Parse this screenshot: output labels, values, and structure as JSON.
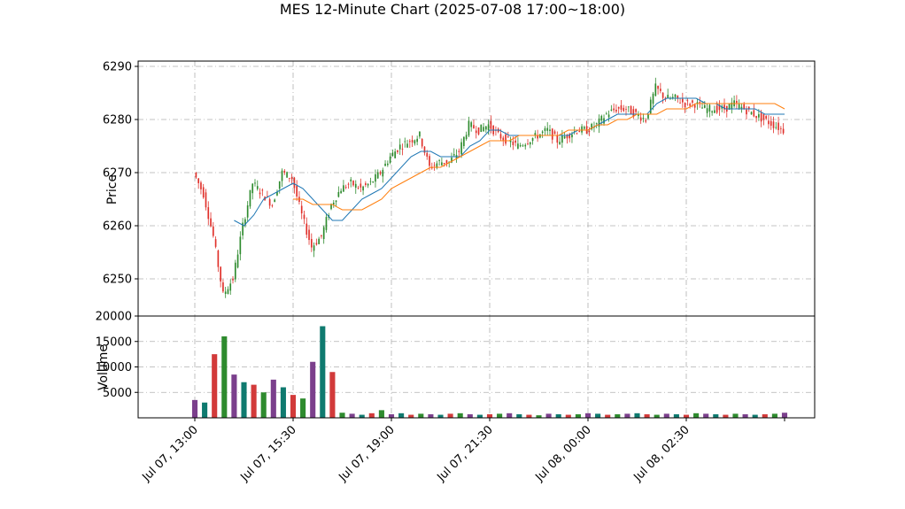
{
  "chart_data": {
    "type": "candlestick",
    "title": "MES 12-Minute Chart (2025-07-08 17:00~18:00)",
    "x_tick_labels": [
      "Jul 07, 13:00",
      "Jul 07, 15:30",
      "Jul 07, 19:00",
      "Jul 07, 21:30",
      "Jul 08, 00:00",
      "Jul 08, 02:30"
    ],
    "x_range_bars": [
      0,
      60
    ],
    "x_tick_bars": [
      0,
      10,
      20,
      30,
      40,
      50
    ],
    "price_panel": {
      "ylabel": "Price",
      "ylim": [
        6243,
        6291
      ],
      "yticks": [
        6250,
        6260,
        6270,
        6280,
        6290
      ],
      "grid": true,
      "up_color": "#2e8b2e",
      "down_color": "#e0302a",
      "ma_short_color": "#1f77b4",
      "ma_long_color": "#ff7f0e",
      "close_series": [
        6270,
        6266,
        6258,
        6247,
        6250,
        6260,
        6268,
        6266,
        6264,
        6270,
        6269,
        6262,
        6256,
        6258,
        6264,
        6267,
        6268,
        6267,
        6268,
        6270,
        6273,
        6275,
        6276,
        6277,
        6271,
        6272,
        6272,
        6274,
        6279,
        6278,
        6279,
        6277,
        6276,
        6275,
        6276,
        6277,
        6278,
        6276,
        6277,
        6278,
        6278,
        6279,
        6281,
        6282,
        6282,
        6281,
        6280,
        6286,
        6284,
        6284,
        6283,
        6283,
        6282,
        6282,
        6282,
        6283,
        6282,
        6281,
        6280,
        6279,
        6278
      ],
      "ma_short": [
        null,
        null,
        null,
        null,
        6261,
        6260,
        6262,
        6265,
        6266,
        6267,
        6268,
        6267,
        6265,
        6263,
        6261,
        6261,
        6263,
        6265,
        6266,
        6267,
        6269,
        6271,
        6273,
        6274,
        6274,
        6273,
        6273,
        6273,
        6275,
        6276,
        6278,
        6278,
        6277,
        6277,
        6277,
        6277,
        6277,
        6277,
        6277,
        6278,
        6278,
        6279,
        6280,
        6281,
        6281,
        6281,
        6281,
        6283,
        6284,
        6284,
        6284,
        6284,
        6283,
        6283,
        6282,
        6282,
        6282,
        6282,
        6281,
        6281,
        6281
      ],
      "ma_long": [
        null,
        null,
        null,
        null,
        null,
        null,
        null,
        null,
        null,
        null,
        6265,
        6265,
        6264,
        6264,
        6264,
        6263,
        6263,
        6263,
        6264,
        6265,
        6267,
        6268,
        6269,
        6270,
        6271,
        6271,
        6272,
        6273,
        6274,
        6275,
        6276,
        6276,
        6276,
        6277,
        6277,
        6277,
        6277,
        6277,
        6278,
        6278,
        6278,
        6279,
        6279,
        6280,
        6280,
        6281,
        6281,
        6281,
        6282,
        6282,
        6282,
        6283,
        6283,
        6283,
        6283,
        6283,
        6283,
        6283,
        6283,
        6283,
        6282
      ]
    },
    "volume_panel": {
      "ylabel": "Volume",
      "ylim": [
        0,
        20000
      ],
      "yticks": [
        5000,
        10000,
        15000,
        20000
      ],
      "grid": true,
      "volumes": [
        3500,
        3000,
        12500,
        16000,
        8500,
        7000,
        6500,
        5000,
        7500,
        6000,
        4500,
        3800,
        11000,
        18000,
        9000,
        1000,
        800,
        600,
        900,
        1500,
        700,
        900,
        600,
        800,
        700,
        600,
        800,
        900,
        700,
        600,
        700,
        800,
        900,
        700,
        600,
        500,
        800,
        700,
        600,
        700,
        900,
        800,
        600,
        700,
        800,
        900,
        700,
        600,
        800,
        700,
        600,
        900,
        800,
        700,
        600,
        800,
        700,
        600,
        700,
        800,
        1000
      ],
      "colors_note": "bars alternate among purple, teal, red, green"
    }
  }
}
